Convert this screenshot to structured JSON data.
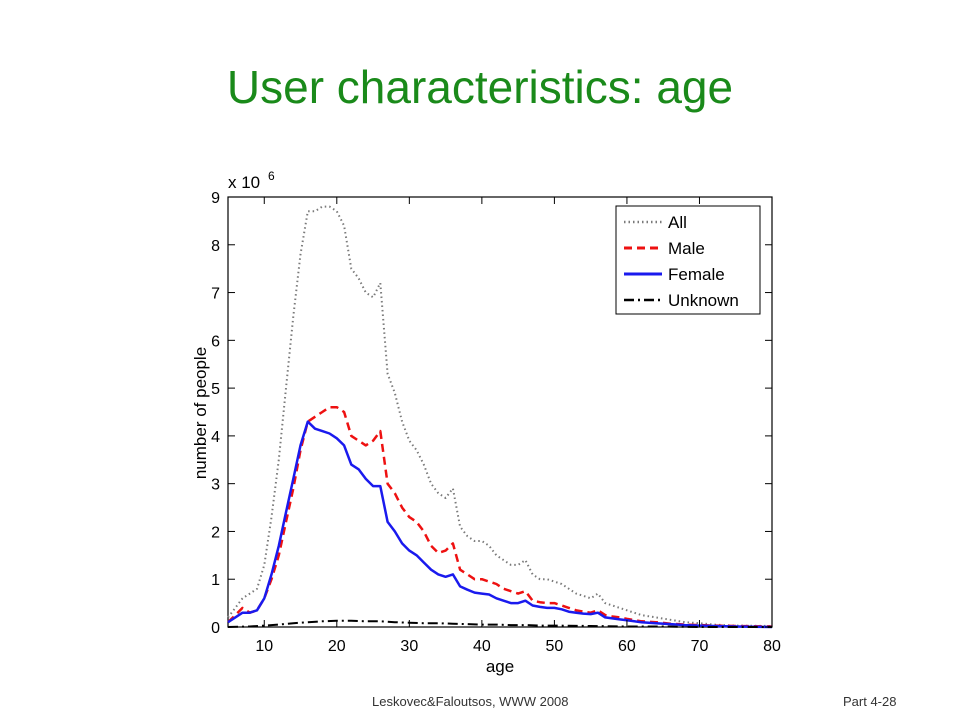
{
  "slide": {
    "title": "User characteristics: age",
    "footer_citation": "Leskovec&Faloutsos, WWW 2008",
    "footer_page": "Part 4-28"
  },
  "colors": {
    "title": "#1a8a1a",
    "all": "#7a7a7a",
    "male": "#ee1111",
    "female": "#1a1aee",
    "unknown": "#000000"
  },
  "chart_data": {
    "type": "line",
    "title": "",
    "xlabel": "age",
    "ylabel": "number of people",
    "y_multiplier_label": "x 10",
    "y_multiplier_exponent": "6",
    "xlim": [
      5,
      80
    ],
    "ylim": [
      0,
      9
    ],
    "x_ticks": [
      10,
      20,
      30,
      40,
      50,
      60,
      70,
      80
    ],
    "y_ticks": [
      0,
      1,
      2,
      3,
      4,
      5,
      6,
      7,
      8,
      9
    ],
    "grid": false,
    "legend_position": "top-right",
    "series": [
      {
        "name": "All",
        "style": "dotted",
        "color_key": "all",
        "points": [
          [
            5,
            0.2
          ],
          [
            6,
            0.4
          ],
          [
            7,
            0.6
          ],
          [
            8,
            0.7
          ],
          [
            9,
            0.8
          ],
          [
            10,
            1.3
          ],
          [
            11,
            2.3
          ],
          [
            12,
            3.5
          ],
          [
            13,
            5.0
          ],
          [
            14,
            6.5
          ],
          [
            15,
            7.8
          ],
          [
            16,
            8.7
          ],
          [
            17,
            8.7
          ],
          [
            18,
            8.8
          ],
          [
            19,
            8.8
          ],
          [
            20,
            8.7
          ],
          [
            21,
            8.4
          ],
          [
            22,
            7.5
          ],
          [
            23,
            7.3
          ],
          [
            24,
            7.0
          ],
          [
            25,
            6.9
          ],
          [
            26,
            7.2
          ],
          [
            27,
            5.3
          ],
          [
            28,
            4.9
          ],
          [
            29,
            4.3
          ],
          [
            30,
            3.9
          ],
          [
            31,
            3.7
          ],
          [
            32,
            3.4
          ],
          [
            33,
            3.0
          ],
          [
            34,
            2.8
          ],
          [
            35,
            2.7
          ],
          [
            36,
            2.9
          ],
          [
            37,
            2.1
          ],
          [
            38,
            1.9
          ],
          [
            39,
            1.8
          ],
          [
            40,
            1.8
          ],
          [
            41,
            1.7
          ],
          [
            42,
            1.5
          ],
          [
            43,
            1.4
          ],
          [
            44,
            1.3
          ],
          [
            45,
            1.3
          ],
          [
            46,
            1.4
          ],
          [
            47,
            1.1
          ],
          [
            48,
            1.0
          ],
          [
            49,
            1.0
          ],
          [
            50,
            0.95
          ],
          [
            51,
            0.9
          ],
          [
            52,
            0.8
          ],
          [
            53,
            0.7
          ],
          [
            54,
            0.65
          ],
          [
            55,
            0.6
          ],
          [
            56,
            0.7
          ],
          [
            57,
            0.5
          ],
          [
            58,
            0.45
          ],
          [
            59,
            0.4
          ],
          [
            60,
            0.35
          ],
          [
            62,
            0.25
          ],
          [
            64,
            0.2
          ],
          [
            66,
            0.15
          ],
          [
            68,
            0.1
          ],
          [
            70,
            0.08
          ],
          [
            72,
            0.05
          ],
          [
            75,
            0.03
          ],
          [
            80,
            0.02
          ]
        ]
      },
      {
        "name": "Male",
        "style": "dashed",
        "color_key": "male",
        "points": [
          [
            5,
            0.1
          ],
          [
            6,
            0.25
          ],
          [
            7,
            0.4
          ],
          [
            8,
            0.3
          ],
          [
            9,
            0.35
          ],
          [
            10,
            0.6
          ],
          [
            11,
            1.0
          ],
          [
            12,
            1.5
          ],
          [
            13,
            2.2
          ],
          [
            14,
            2.9
          ],
          [
            15,
            3.7
          ],
          [
            16,
            4.3
          ],
          [
            17,
            4.4
          ],
          [
            18,
            4.5
          ],
          [
            19,
            4.6
          ],
          [
            20,
            4.6
          ],
          [
            21,
            4.5
          ],
          [
            22,
            4.0
          ],
          [
            23,
            3.9
          ],
          [
            24,
            3.8
          ],
          [
            25,
            3.9
          ],
          [
            26,
            4.1
          ],
          [
            27,
            3.0
          ],
          [
            28,
            2.8
          ],
          [
            29,
            2.5
          ],
          [
            30,
            2.3
          ],
          [
            31,
            2.2
          ],
          [
            32,
            2.0
          ],
          [
            33,
            1.7
          ],
          [
            34,
            1.55
          ],
          [
            35,
            1.6
          ],
          [
            36,
            1.75
          ],
          [
            37,
            1.2
          ],
          [
            38,
            1.1
          ],
          [
            39,
            1.0
          ],
          [
            40,
            1.0
          ],
          [
            41,
            0.95
          ],
          [
            42,
            0.9
          ],
          [
            43,
            0.8
          ],
          [
            44,
            0.75
          ],
          [
            45,
            0.7
          ],
          [
            46,
            0.75
          ],
          [
            47,
            0.55
          ],
          [
            48,
            0.52
          ],
          [
            49,
            0.5
          ],
          [
            50,
            0.5
          ],
          [
            51,
            0.45
          ],
          [
            52,
            0.4
          ],
          [
            53,
            0.35
          ],
          [
            54,
            0.32
          ],
          [
            55,
            0.3
          ],
          [
            56,
            0.35
          ],
          [
            57,
            0.25
          ],
          [
            58,
            0.22
          ],
          [
            59,
            0.2
          ],
          [
            60,
            0.17
          ],
          [
            62,
            0.12
          ],
          [
            64,
            0.1
          ],
          [
            66,
            0.07
          ],
          [
            68,
            0.05
          ],
          [
            70,
            0.04
          ],
          [
            72,
            0.03
          ],
          [
            75,
            0.02
          ],
          [
            80,
            0.01
          ]
        ]
      },
      {
        "name": "Female",
        "style": "solid",
        "color_key": "female",
        "points": [
          [
            5,
            0.1
          ],
          [
            6,
            0.2
          ],
          [
            7,
            0.3
          ],
          [
            8,
            0.3
          ],
          [
            9,
            0.35
          ],
          [
            10,
            0.6
          ],
          [
            11,
            1.1
          ],
          [
            12,
            1.7
          ],
          [
            13,
            2.4
          ],
          [
            14,
            3.1
          ],
          [
            15,
            3.8
          ],
          [
            16,
            4.3
          ],
          [
            17,
            4.15
          ],
          [
            18,
            4.1
          ],
          [
            19,
            4.05
          ],
          [
            20,
            3.95
          ],
          [
            21,
            3.8
          ],
          [
            22,
            3.4
          ],
          [
            23,
            3.3
          ],
          [
            24,
            3.1
          ],
          [
            25,
            2.95
          ],
          [
            26,
            2.95
          ],
          [
            27,
            2.2
          ],
          [
            28,
            2.0
          ],
          [
            29,
            1.75
          ],
          [
            30,
            1.6
          ],
          [
            31,
            1.5
          ],
          [
            32,
            1.35
          ],
          [
            33,
            1.2
          ],
          [
            34,
            1.1
          ],
          [
            35,
            1.05
          ],
          [
            36,
            1.1
          ],
          [
            37,
            0.85
          ],
          [
            38,
            0.78
          ],
          [
            39,
            0.72
          ],
          [
            40,
            0.7
          ],
          [
            41,
            0.68
          ],
          [
            42,
            0.6
          ],
          [
            43,
            0.55
          ],
          [
            44,
            0.5
          ],
          [
            45,
            0.5
          ],
          [
            46,
            0.55
          ],
          [
            47,
            0.45
          ],
          [
            48,
            0.42
          ],
          [
            49,
            0.4
          ],
          [
            50,
            0.4
          ],
          [
            51,
            0.37
          ],
          [
            52,
            0.32
          ],
          [
            53,
            0.3
          ],
          [
            54,
            0.28
          ],
          [
            55,
            0.27
          ],
          [
            56,
            0.3
          ],
          [
            57,
            0.2
          ],
          [
            58,
            0.18
          ],
          [
            59,
            0.16
          ],
          [
            60,
            0.14
          ],
          [
            62,
            0.1
          ],
          [
            64,
            0.08
          ],
          [
            66,
            0.06
          ],
          [
            68,
            0.04
          ],
          [
            70,
            0.03
          ],
          [
            72,
            0.02
          ],
          [
            75,
            0.01
          ],
          [
            80,
            0.0
          ]
        ]
      },
      {
        "name": "Unknown",
        "style": "dashdot",
        "color_key": "unknown",
        "points": [
          [
            5,
            0.0
          ],
          [
            8,
            0.01
          ],
          [
            10,
            0.03
          ],
          [
            12,
            0.05
          ],
          [
            14,
            0.08
          ],
          [
            16,
            0.1
          ],
          [
            18,
            0.12
          ],
          [
            20,
            0.13
          ],
          [
            22,
            0.13
          ],
          [
            24,
            0.12
          ],
          [
            26,
            0.12
          ],
          [
            28,
            0.1
          ],
          [
            30,
            0.09
          ],
          [
            32,
            0.08
          ],
          [
            34,
            0.08
          ],
          [
            36,
            0.07
          ],
          [
            38,
            0.06
          ],
          [
            40,
            0.05
          ],
          [
            42,
            0.05
          ],
          [
            44,
            0.04
          ],
          [
            46,
            0.04
          ],
          [
            48,
            0.03
          ],
          [
            50,
            0.03
          ],
          [
            55,
            0.02
          ],
          [
            60,
            0.01
          ],
          [
            65,
            0.01
          ],
          [
            70,
            0.0
          ],
          [
            80,
            0.0
          ]
        ]
      }
    ]
  }
}
